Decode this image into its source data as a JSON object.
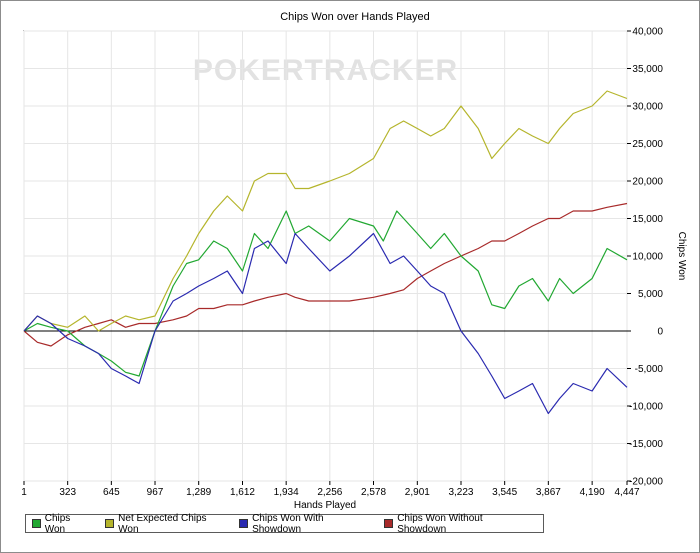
{
  "chart_data": {
    "type": "line",
    "title": "Chips Won over Hands Played",
    "watermark": "POKERTRACKER",
    "xlabel": "Hands Played",
    "ylabel": "Chips Won",
    "xlim": [
      1,
      4447
    ],
    "ylim": [
      -20000,
      40000
    ],
    "x_ticks": [
      1,
      323,
      645,
      967,
      1289,
      1612,
      1934,
      2256,
      2578,
      2901,
      3223,
      3545,
      3867,
      4190,
      4447
    ],
    "x_tick_labels": [
      "1",
      "323",
      "645",
      "967",
      "1,289",
      "1,612",
      "1,934",
      "2,256",
      "2,578",
      "2,901",
      "3,223",
      "3,545",
      "3,867",
      "4,190",
      "4,447"
    ],
    "y_ticks": [
      -20000,
      -15000,
      -10000,
      -5000,
      0,
      5000,
      10000,
      15000,
      20000,
      25000,
      30000,
      35000,
      40000
    ],
    "y_tick_labels": [
      "-20,000",
      "-15,000",
      "-10,000",
      "-5,000",
      "0",
      "5,000",
      "10,000",
      "15,000",
      "20,000",
      "25,000",
      "30,000",
      "35,000",
      "40,000"
    ],
    "series": [
      {
        "name": "Chips Won",
        "color": "#22a832",
        "x": [
          1,
          100,
          200,
          323,
          450,
          550,
          645,
          750,
          850,
          967,
          1100,
          1200,
          1289,
          1400,
          1500,
          1612,
          1700,
          1800,
          1934,
          2000,
          2100,
          2256,
          2400,
          2578,
          2650,
          2750,
          2901,
          3000,
          3100,
          3223,
          3350,
          3450,
          3545,
          3650,
          3750,
          3867,
          3950,
          4050,
          4190,
          4300,
          4447
        ],
        "y": [
          0,
          1000,
          500,
          0,
          -2000,
          -3000,
          -4000,
          -5500,
          -6000,
          0,
          6000,
          9000,
          9500,
          12000,
          11000,
          8000,
          13000,
          11000,
          16000,
          13000,
          14000,
          12000,
          15000,
          14000,
          12000,
          16000,
          13000,
          11000,
          13000,
          10000,
          8000,
          3500,
          3000,
          6000,
          7000,
          4000,
          7000,
          5000,
          7000,
          11000,
          9500
        ]
      },
      {
        "name": "Net Expected Chips Won",
        "color": "#b5b52c",
        "x": [
          1,
          100,
          200,
          323,
          450,
          550,
          645,
          750,
          850,
          967,
          1100,
          1200,
          1289,
          1400,
          1500,
          1612,
          1700,
          1800,
          1934,
          2000,
          2100,
          2256,
          2400,
          2578,
          2700,
          2800,
          2901,
          3000,
          3100,
          3223,
          3350,
          3450,
          3545,
          3650,
          3750,
          3867,
          3950,
          4050,
          4190,
          4300,
          4447
        ],
        "y": [
          0,
          2000,
          1000,
          500,
          2000,
          0,
          1000,
          2000,
          1500,
          2000,
          7000,
          10000,
          13000,
          16000,
          18000,
          16000,
          20000,
          21000,
          21000,
          19000,
          19000,
          20000,
          21000,
          23000,
          27000,
          28000,
          27000,
          26000,
          27000,
          30000,
          27000,
          23000,
          25000,
          27000,
          26000,
          25000,
          27000,
          29000,
          30000,
          32000,
          31000
        ]
      },
      {
        "name": "Chips Won With Showdown",
        "color": "#2a2ab0",
        "x": [
          1,
          100,
          200,
          323,
          450,
          550,
          645,
          750,
          850,
          967,
          1100,
          1200,
          1289,
          1400,
          1500,
          1612,
          1700,
          1800,
          1934,
          2000,
          2100,
          2256,
          2400,
          2578,
          2700,
          2800,
          2901,
          3000,
          3100,
          3223,
          3350,
          3450,
          3545,
          3650,
          3750,
          3867,
          3950,
          4050,
          4190,
          4300,
          4447
        ],
        "y": [
          0,
          2000,
          1000,
          -1000,
          -2000,
          -3000,
          -5000,
          -6000,
          -7000,
          0,
          4000,
          5000,
          6000,
          7000,
          8000,
          5000,
          11000,
          12000,
          9000,
          13000,
          11000,
          8000,
          10000,
          13000,
          9000,
          10000,
          8000,
          6000,
          5000,
          0,
          -3000,
          -6000,
          -9000,
          -8000,
          -7000,
          -11000,
          -9000,
          -7000,
          -8000,
          -5000,
          -7500
        ]
      },
      {
        "name": "Chips Won Without Showdown",
        "color": "#a82a2a",
        "x": [
          1,
          100,
          200,
          323,
          450,
          550,
          645,
          750,
          850,
          967,
          1100,
          1200,
          1289,
          1400,
          1500,
          1612,
          1700,
          1800,
          1934,
          2000,
          2100,
          2256,
          2400,
          2578,
          2700,
          2800,
          2901,
          3000,
          3100,
          3223,
          3350,
          3450,
          3545,
          3650,
          3750,
          3867,
          3950,
          4050,
          4190,
          4300,
          4447
        ],
        "y": [
          0,
          -1500,
          -2000,
          -500,
          500,
          1000,
          1500,
          500,
          1000,
          1000,
          1500,
          2000,
          3000,
          3000,
          3500,
          3500,
          4000,
          4500,
          5000,
          4500,
          4000,
          4000,
          4000,
          4500,
          5000,
          5500,
          7000,
          8000,
          9000,
          10000,
          11000,
          12000,
          12000,
          13000,
          14000,
          15000,
          15000,
          16000,
          16000,
          16500,
          17000
        ]
      }
    ]
  }
}
